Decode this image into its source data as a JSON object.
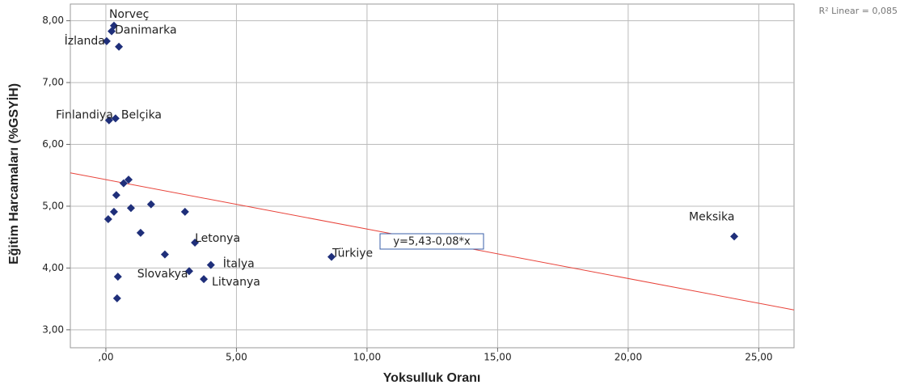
{
  "chart_data": {
    "type": "scatter",
    "xlabel": "Yoksulluk Oranı",
    "ylabel": "Eğitim Harcamaları (%GSYİH)",
    "x": [
      0.31,
      0.22,
      0.5,
      0.03,
      0.12,
      0.37,
      0.87,
      0.68,
      0.4,
      1.73,
      0.96,
      0.31,
      0.09,
      3.03,
      1.33,
      3.41,
      2.26,
      4.02,
      3.19,
      3.75,
      0.46,
      0.43,
      8.64,
      24.06
    ],
    "values": [
      7.92,
      7.83,
      7.58,
      7.67,
      6.39,
      6.42,
      5.43,
      5.37,
      5.18,
      5.03,
      4.97,
      4.91,
      4.79,
      4.91,
      4.57,
      4.41,
      4.22,
      4.05,
      3.95,
      3.82,
      3.86,
      3.51,
      4.18,
      4.51
    ],
    "labels": [
      "Norveç",
      "Danimarka",
      null,
      "İzlanda",
      "Finlandiya",
      "Belçika",
      null,
      null,
      null,
      null,
      null,
      null,
      null,
      null,
      null,
      "Letonya",
      null,
      "İtalya",
      null,
      "Litvanya",
      "Slovakya",
      null,
      "Türkiye",
      "Meksika"
    ],
    "color": "#1f2f7a",
    "xlim": [
      -1.36,
      26.35
    ],
    "ylim": [
      2.71,
      8.27
    ],
    "xticks": [
      {
        "value": 0,
        "label": ",00"
      },
      {
        "value": 5,
        "label": "5,00"
      },
      {
        "value": 10,
        "label": "10,00"
      },
      {
        "value": 15,
        "label": "15,00"
      },
      {
        "value": 20,
        "label": "20,00"
      },
      {
        "value": 25,
        "label": "25,00"
      }
    ],
    "yticks": [
      {
        "value": 3,
        "label": "3,00"
      },
      {
        "value": 4,
        "label": "4,00"
      },
      {
        "value": 5,
        "label": "5,00"
      },
      {
        "value": 6,
        "label": "6,00"
      },
      {
        "value": 7,
        "label": "7,00"
      },
      {
        "value": 8,
        "label": "8,00"
      }
    ],
    "grid": true,
    "fit": {
      "intercept": 5.43,
      "slope": -0.08,
      "color": "#e8433a",
      "label": "y=5,43-0,08*x",
      "r2_label": "R² Linear = 0,085"
    }
  }
}
